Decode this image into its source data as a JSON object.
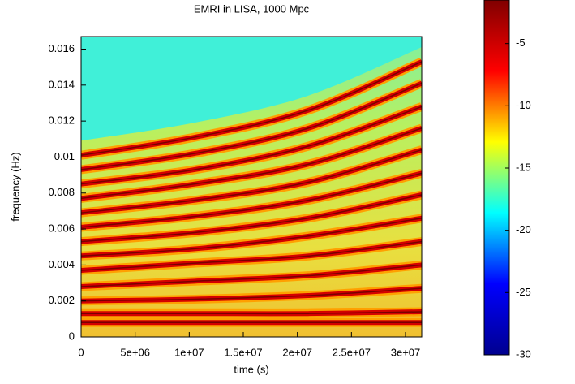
{
  "chart_data": {
    "type": "spectrogram",
    "title": "EMRI in LISA, 1000 Mpc",
    "x_label": "time (s)",
    "y_label": "frequency (Hz)",
    "x": [
      0,
      10500000,
      21000000,
      31500000
    ],
    "series": [
      {
        "color": "#d40000",
        "values": [
          0.0101,
          0.0111,
          0.0126,
          0.0153
        ]
      },
      {
        "color": "#d40000",
        "values": [
          0.0093,
          0.0102,
          0.0116,
          0.0141
        ]
      },
      {
        "color": "#d40000",
        "values": [
          0.0085,
          0.0093,
          0.0106,
          0.0128
        ]
      },
      {
        "color": "#d40000",
        "values": [
          0.0077,
          0.0085,
          0.0096,
          0.0116
        ]
      },
      {
        "color": "#d40000",
        "values": [
          0.0069,
          0.0076,
          0.0086,
          0.0104
        ]
      },
      {
        "color": "#d40000",
        "values": [
          0.0061,
          0.0067,
          0.0076,
          0.0091
        ]
      },
      {
        "color": "#d40000",
        "values": [
          0.0053,
          0.0058,
          0.0066,
          0.0079
        ]
      },
      {
        "color": "#d40000",
        "values": [
          0.0045,
          0.0049,
          0.0056,
          0.0066
        ]
      },
      {
        "color": "#d40000",
        "values": [
          0.0037,
          0.0041,
          0.0045,
          0.0053
        ]
      },
      {
        "color": "#d40000",
        "values": [
          0.0028,
          0.0031,
          0.0034,
          0.004
        ]
      },
      {
        "color": "#d40000",
        "values": [
          0.002,
          0.0021,
          0.0023,
          0.0027
        ]
      },
      {
        "color": "#d40000",
        "values": [
          0.0013,
          0.0013,
          0.0013,
          0.0014
        ]
      },
      {
        "color": "#d40000",
        "values": [
          0.0008,
          0.0008,
          0.0008,
          0.0008
        ]
      }
    ],
    "xlim": [
      0,
      31500000
    ],
    "xticks": [
      0,
      {
        "value": 5000000,
        "label": "5e+06"
      },
      {
        "value": 10000000,
        "label": "1e+07"
      },
      {
        "value": 15000000,
        "label": "1.5e+07"
      },
      {
        "value": 20000000,
        "label": "2e+07"
      },
      {
        "value": 25000000,
        "label": "2.5e+07"
      },
      {
        "value": 30000000,
        "label": "3e+07"
      }
    ],
    "ylim": [
      0,
      0.0167
    ],
    "yticks": [
      0,
      0.002,
      0.004,
      0.006,
      0.008,
      0.01,
      0.012,
      0.014,
      0.016
    ],
    "clim": [
      -30,
      -1.5
    ],
    "cticks": [
      -5,
      -10,
      -15,
      -20,
      -25,
      -30
    ],
    "colormap": [
      "#00008f",
      "#0000ff",
      "#00ffff",
      "#ffff00",
      "#ff0000",
      "#800000"
    ]
  }
}
